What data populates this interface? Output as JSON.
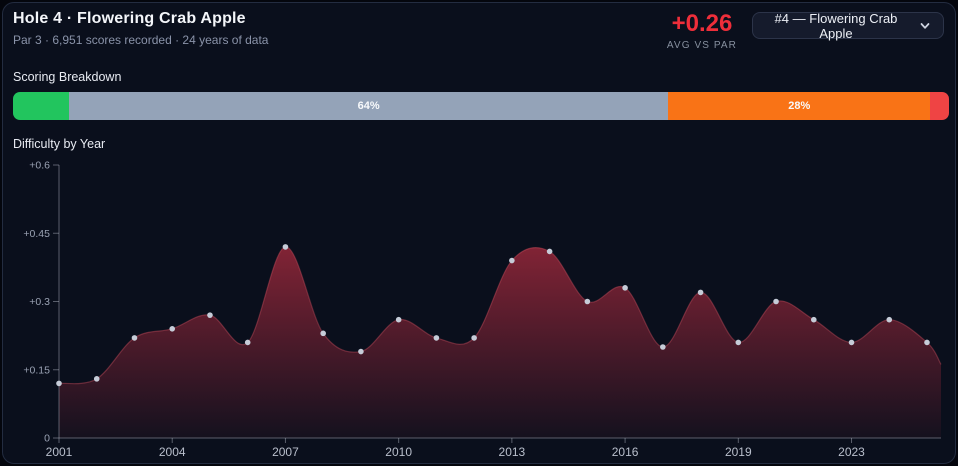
{
  "header": {
    "title": "Hole 4 · Flowering Crab Apple",
    "subtitle": "Par 3 · 6,951 scores recorded · 24 years of data",
    "avg_vs_par": "+0.26",
    "avg_vs_par_label": "AVG VS PAR",
    "avg_color": "#ee2e3a",
    "hole_select": {
      "value": "#4 — Flowering Crab Apple"
    }
  },
  "scoring_breakdown": {
    "label": "Scoring Breakdown",
    "segments": [
      {
        "pct": 6,
        "color": "#22c55e",
        "label": ""
      },
      {
        "pct": 64,
        "color": "#94a3b8",
        "label": "64%"
      },
      {
        "pct": 28,
        "color": "#f97316",
        "label": "28%"
      },
      {
        "pct": 2,
        "color": "#ef4444",
        "label": ""
      }
    ]
  },
  "chart_data": {
    "type": "area",
    "title": "Difficulty by Year",
    "xlabel": "",
    "ylabel": "",
    "x": [
      2001,
      2002,
      2003,
      2004,
      2005,
      2006,
      2007,
      2008,
      2009,
      2010,
      2011,
      2012,
      2013,
      2014,
      2015,
      2016,
      2017,
      2018,
      2019,
      2021,
      2022,
      2023,
      2024,
      2025
    ],
    "values": [
      0.12,
      0.13,
      0.22,
      0.24,
      0.27,
      0.21,
      0.42,
      0.23,
      0.19,
      0.26,
      0.22,
      0.22,
      0.39,
      0.41,
      0.3,
      0.33,
      0.2,
      0.32,
      0.21,
      0.3,
      0.26,
      0.21,
      0.26,
      0.21
    ],
    "ylim": [
      0,
      0.6
    ],
    "y_ticks": [
      {
        "v": 0,
        "label": "0"
      },
      {
        "v": 0.15,
        "label": "+0.15"
      },
      {
        "v": 0.3,
        "label": "+0.3"
      },
      {
        "v": 0.45,
        "label": "+0.45"
      },
      {
        "v": 0.6,
        "label": "+0.6"
      }
    ],
    "x_tick_labels": [
      "2001",
      "2004",
      "2007",
      "2010",
      "2013",
      "2016",
      "2019",
      "2023"
    ],
    "grid": "off",
    "legend": "none",
    "area_color": "#b92d41",
    "line_color": "#c44b5c",
    "dot_color": "#c6ccd8",
    "axis_color": "#c8ced9"
  }
}
